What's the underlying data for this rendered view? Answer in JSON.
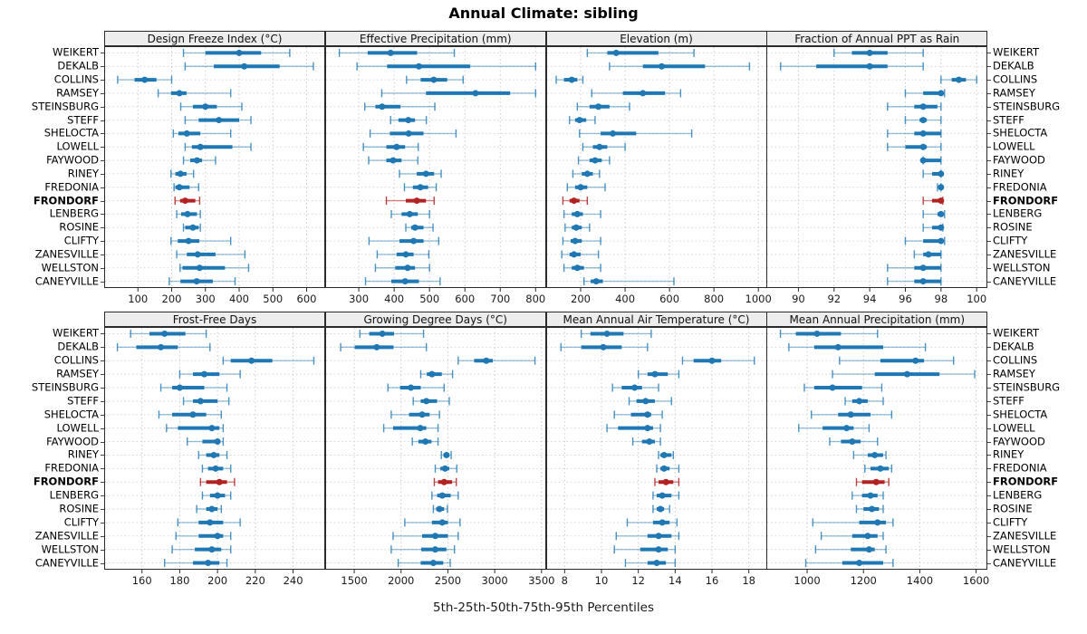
{
  "title": "Annual Climate: sibling",
  "caption": "5th-25th-50th-75th-95th Percentiles",
  "highlight_site": "FRONDORF",
  "percentile_labels": [
    "5th",
    "25th",
    "50th",
    "75th",
    "95th"
  ],
  "sites": [
    "WEIKERT",
    "DEKALB",
    "COLLINS",
    "RAMSEY",
    "STEINSBURG",
    "STEFF",
    "SHELOCTA",
    "LOWELL",
    "FAYWOOD",
    "RINEY",
    "FREDONIA",
    "FRONDORF",
    "LENBERG",
    "ROSINE",
    "CLIFTY",
    "ZANESVILLE",
    "WELLSTON",
    "CANEYVILLE"
  ],
  "colors": {
    "point": "#1f77b4",
    "interval": "#1f77b4",
    "whisker": "rgba(31,119,180,0.45)",
    "whisker_cap": "rgba(31,119,180,0.8)",
    "highlight_point": "#b22222",
    "highlight_whisker": "rgba(178,34,34,0.55)",
    "highlight_cap": "rgba(178,34,34,0.85)",
    "strip_bg": "#ededed",
    "panel_border": "#2b2b2b",
    "grid_v": "#cbcbcb",
    "grid_h": "#d6d6d6",
    "axis_text": "#1a1a1a",
    "background": "#ffffff"
  },
  "chart_data": [
    {
      "type": "interval-dotplot",
      "row": 0,
      "col": 0,
      "title": "Design Freeze Index (°C)",
      "xlim": [
        0,
        655
      ],
      "ticks": [
        100,
        200,
        300,
        400,
        500,
        600
      ],
      "values": [
        [
          235,
          300,
          400,
          465,
          550
        ],
        [
          240,
          325,
          415,
          520,
          620
        ],
        [
          40,
          90,
          120,
          155,
          200
        ],
        [
          160,
          198,
          223,
          244,
          375
        ],
        [
          227,
          263,
          300,
          334,
          408
        ],
        [
          240,
          280,
          340,
          400,
          435
        ],
        [
          205,
          220,
          245,
          285,
          375
        ],
        [
          240,
          260,
          285,
          380,
          435
        ],
        [
          235,
          255,
          275,
          290,
          330
        ],
        [
          198,
          211,
          226,
          244,
          265
        ],
        [
          207,
          211,
          223,
          253,
          280
        ],
        [
          210,
          225,
          240,
          270,
          283
        ],
        [
          215,
          228,
          247,
          275,
          285
        ],
        [
          235,
          240,
          263,
          280,
          285
        ],
        [
          198,
          218,
          250,
          282,
          375
        ],
        [
          215,
          245,
          277,
          330,
          417
        ],
        [
          225,
          232,
          283,
          358,
          428
        ],
        [
          193,
          226,
          274,
          322,
          388
        ]
      ]
    },
    {
      "type": "interval-dotplot",
      "row": 0,
      "col": 1,
      "title": "Effective Precipitation (mm)",
      "xlim": [
        205,
        830
      ],
      "ticks": [
        300,
        400,
        500,
        600,
        700,
        800
      ],
      "values": [
        [
          245,
          325,
          390,
          465,
          570
        ],
        [
          295,
          380,
          470,
          615,
          800
        ],
        [
          435,
          475,
          512,
          550,
          595
        ],
        [
          365,
          490,
          630,
          728,
          800
        ],
        [
          317,
          347,
          366,
          418,
          515
        ],
        [
          390,
          412,
          440,
          459,
          491
        ],
        [
          332,
          388,
          441,
          483,
          575
        ],
        [
          313,
          378,
          407,
          431,
          468
        ],
        [
          328,
          378,
          397,
          421,
          467
        ],
        [
          415,
          464,
          490,
          513,
          533
        ],
        [
          429,
          453,
          474,
          496,
          519
        ],
        [
          378,
          433,
          464,
          490,
          513
        ],
        [
          392,
          421,
          444,
          467,
          500
        ],
        [
          433,
          448,
          459,
          483,
          510
        ],
        [
          329,
          415,
          455,
          483,
          526
        ],
        [
          352,
          407,
          433,
          455,
          498
        ],
        [
          347,
          403,
          438,
          459,
          500
        ],
        [
          319,
          392,
          431,
          470,
          530
        ]
      ]
    },
    {
      "type": "interval-dotplot",
      "row": 0,
      "col": 2,
      "title": "Elevation (m)",
      "xlim": [
        45,
        1040
      ],
      "ticks": [
        200,
        400,
        600,
        800,
        1000
      ],
      "values": [
        [
          230,
          320,
          360,
          550,
          710
        ],
        [
          330,
          480,
          565,
          760,
          960
        ],
        [
          90,
          125,
          160,
          185,
          210
        ],
        [
          250,
          390,
          480,
          580,
          650
        ],
        [
          185,
          240,
          280,
          330,
          420
        ],
        [
          150,
          175,
          195,
          225,
          265
        ],
        [
          195,
          290,
          345,
          450,
          700
        ],
        [
          210,
          255,
          285,
          320,
          400
        ],
        [
          190,
          240,
          265,
          295,
          330
        ],
        [
          165,
          205,
          230,
          255,
          285
        ],
        [
          140,
          175,
          200,
          230,
          310
        ],
        [
          120,
          150,
          170,
          195,
          230
        ],
        [
          125,
          160,
          185,
          210,
          290
        ],
        [
          130,
          160,
          180,
          205,
          240
        ],
        [
          120,
          155,
          175,
          205,
          290
        ],
        [
          115,
          150,
          170,
          200,
          280
        ],
        [
          125,
          160,
          185,
          215,
          290
        ],
        [
          215,
          245,
          270,
          300,
          620
        ]
      ]
    },
    {
      "type": "interval-dotplot",
      "row": 0,
      "col": 3,
      "title": "Fraction of Annual PPT as Rain",
      "xlim": [
        88.2,
        100.6
      ],
      "ticks": [
        90,
        92,
        94,
        96,
        98,
        100
      ],
      "values": [
        [
          92,
          93,
          94,
          95,
          97
        ],
        [
          89,
          91,
          94,
          95,
          97
        ],
        [
          98,
          98.6,
          99,
          99.4,
          100
        ],
        [
          96,
          97,
          98,
          98,
          98.2
        ],
        [
          95,
          96.5,
          97,
          97.8,
          98
        ],
        [
          96,
          96.8,
          97,
          97.2,
          98
        ],
        [
          95,
          96.5,
          97,
          98,
          98
        ],
        [
          95,
          96,
          97,
          97.2,
          98
        ],
        [
          97,
          97,
          97,
          98,
          98
        ],
        [
          97,
          97.5,
          98,
          98,
          98
        ],
        [
          97.8,
          98,
          98,
          98,
          98
        ],
        [
          97,
          97.5,
          98,
          98,
          98.1
        ],
        [
          97,
          97.8,
          98,
          98,
          98.2
        ],
        [
          97,
          97.5,
          98,
          98,
          98.1
        ],
        [
          96,
          97,
          98,
          98,
          98.2
        ],
        [
          96.5,
          97,
          97.3,
          98,
          98
        ],
        [
          95,
          96.5,
          97,
          98,
          98
        ],
        [
          95,
          96.5,
          97,
          98,
          98
        ]
      ]
    },
    {
      "type": "interval-dotplot",
      "row": 1,
      "col": 0,
      "title": "Frost-Free Days",
      "xlim": [
        140,
        257
      ],
      "ticks": [
        160,
        180,
        200,
        220,
        240
      ],
      "values": [
        [
          154,
          164,
          172,
          183,
          194
        ],
        [
          147,
          157,
          170,
          179,
          196
        ],
        [
          203,
          207,
          218,
          229,
          251
        ],
        [
          180,
          187,
          193,
          201,
          212
        ],
        [
          170,
          176,
          180,
          193,
          205
        ],
        [
          182,
          187,
          191,
          200,
          206
        ],
        [
          169,
          176,
          187,
          194,
          202
        ],
        [
          173,
          179,
          197,
          201,
          203
        ],
        [
          184,
          192,
          200,
          201,
          203
        ],
        [
          190,
          194,
          198,
          201,
          205
        ],
        [
          192,
          195,
          199,
          203,
          207
        ],
        [
          191,
          194,
          201,
          205,
          209
        ],
        [
          192,
          196,
          200,
          204,
          207
        ],
        [
          189,
          194,
          197,
          200,
          202
        ],
        [
          179,
          190,
          196,
          203,
          212
        ],
        [
          178,
          190,
          200,
          203,
          207
        ],
        [
          176,
          188,
          197,
          202,
          207
        ],
        [
          172,
          187,
          195,
          201,
          205
        ]
      ]
    },
    {
      "type": "interval-dotplot",
      "row": 1,
      "col": 1,
      "title": "Growing Degree Days (°C)",
      "xlim": [
        1190,
        3550
      ],
      "ticks": [
        1500,
        2000,
        2500,
        3000,
        3500
      ],
      "values": [
        [
          1560,
          1660,
          1800,
          1925,
          2240
        ],
        [
          1355,
          1505,
          1740,
          1920,
          2270
        ],
        [
          2610,
          2780,
          2910,
          2980,
          3430
        ],
        [
          2210,
          2275,
          2330,
          2435,
          2550
        ],
        [
          1860,
          1990,
          2105,
          2210,
          2460
        ],
        [
          2130,
          2210,
          2270,
          2385,
          2515
        ],
        [
          1895,
          2085,
          2225,
          2305,
          2410
        ],
        [
          1815,
          1915,
          2205,
          2270,
          2395
        ],
        [
          2120,
          2185,
          2260,
          2325,
          2395
        ],
        [
          2430,
          2455,
          2485,
          2515,
          2535
        ],
        [
          2365,
          2420,
          2470,
          2515,
          2595
        ],
        [
          2355,
          2395,
          2460,
          2545,
          2590
        ],
        [
          2330,
          2385,
          2440,
          2530,
          2610
        ],
        [
          2345,
          2375,
          2410,
          2460,
          2495
        ],
        [
          2040,
          2330,
          2440,
          2500,
          2630
        ],
        [
          1915,
          2225,
          2365,
          2500,
          2610
        ],
        [
          1895,
          2215,
          2365,
          2485,
          2570
        ],
        [
          1970,
          2210,
          2345,
          2450,
          2525
        ]
      ]
    },
    {
      "type": "interval-dotplot",
      "row": 1,
      "col": 2,
      "title": "Mean Annual Air Temperature (°C)",
      "xlim": [
        7,
        19
      ],
      "ticks": [
        8,
        10,
        12,
        14,
        16,
        18
      ],
      "values": [
        [
          8.9,
          9.4,
          10.3,
          11.2,
          12.7
        ],
        [
          7.8,
          8.9,
          10.1,
          11.1,
          12.5
        ],
        [
          14.4,
          15.0,
          16.0,
          16.5,
          18.3
        ],
        [
          12.0,
          12.5,
          12.9,
          13.6,
          14.2
        ],
        [
          10.6,
          11.1,
          11.8,
          12.2,
          13.1
        ],
        [
          11.5,
          11.9,
          12.4,
          12.9,
          13.8
        ],
        [
          10.7,
          11.6,
          12.5,
          12.7,
          13.3
        ],
        [
          10.3,
          10.9,
          12.5,
          12.8,
          13.2
        ],
        [
          11.7,
          12.2,
          12.6,
          12.9,
          13.2
        ],
        [
          13.1,
          13.2,
          13.4,
          13.8,
          13.9
        ],
        [
          13.0,
          13.2,
          13.4,
          13.7,
          14.2
        ],
        [
          12.9,
          13.1,
          13.5,
          13.9,
          14.2
        ],
        [
          12.8,
          13.0,
          13.3,
          13.8,
          14.2
        ],
        [
          12.8,
          13.0,
          13.2,
          13.4,
          13.7
        ],
        [
          11.4,
          12.8,
          13.3,
          13.7,
          14.1
        ],
        [
          10.8,
          12.5,
          13.1,
          13.8,
          14.2
        ],
        [
          10.7,
          12.1,
          13.1,
          13.6,
          14.0
        ],
        [
          11.3,
          12.5,
          13.0,
          13.5,
          14.0
        ]
      ]
    },
    {
      "type": "interval-dotplot",
      "row": 1,
      "col": 3,
      "title": "Mean Annual Precipitation (mm)",
      "xlim": [
        855,
        1640
      ],
      "ticks": [
        1000,
        1200,
        1400,
        1600
      ],
      "values": [
        [
          905,
          960,
          1035,
          1120,
          1250
        ],
        [
          935,
          1025,
          1110,
          1270,
          1420
        ],
        [
          1115,
          1260,
          1385,
          1415,
          1520
        ],
        [
          1090,
          1240,
          1355,
          1470,
          1595
        ],
        [
          990,
          1025,
          1090,
          1195,
          1265
        ],
        [
          1135,
          1160,
          1185,
          1215,
          1270
        ],
        [
          1015,
          1110,
          1155,
          1225,
          1300
        ],
        [
          970,
          1055,
          1140,
          1165,
          1220
        ],
        [
          1080,
          1120,
          1160,
          1190,
          1250
        ],
        [
          1165,
          1215,
          1240,
          1270,
          1280
        ],
        [
          1205,
          1225,
          1260,
          1290,
          1300
        ],
        [
          1175,
          1195,
          1245,
          1275,
          1290
        ],
        [
          1160,
          1195,
          1225,
          1250,
          1270
        ],
        [
          1175,
          1200,
          1230,
          1255,
          1270
        ],
        [
          1020,
          1185,
          1250,
          1280,
          1305
        ],
        [
          1050,
          1160,
          1215,
          1250,
          1270
        ],
        [
          1030,
          1155,
          1220,
          1240,
          1280
        ],
        [
          995,
          1125,
          1185,
          1270,
          1305
        ]
      ]
    }
  ]
}
